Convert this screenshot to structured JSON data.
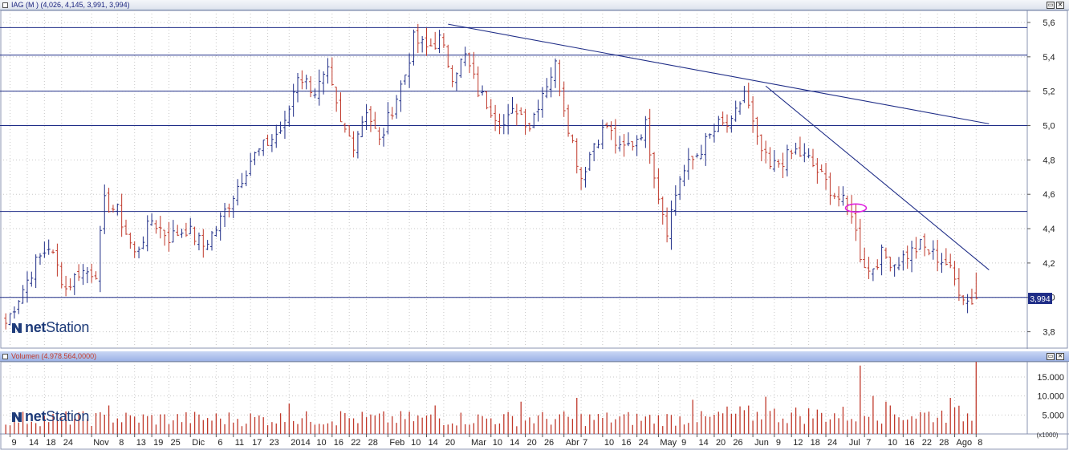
{
  "price_panel": {
    "title": "IAG (M ) (4,026, 4,145, 3,991, 3,994)",
    "last_price_label": "3,994",
    "y_ticks": [
      "5,6",
      "5,4",
      "5,2",
      "5,0",
      "4,8",
      "4,6",
      "4,4",
      "4,2",
      "4,0",
      "3,8"
    ]
  },
  "volume_panel": {
    "title": "Volumen (4.978.564,0000)",
    "last_volume_label": "4.978.564",
    "unit_label": "(x1000)",
    "y_ticks": [
      "15.000",
      "10.000",
      "5.000"
    ]
  },
  "logo": {
    "brand_prefix": "net",
    "brand_suffix": "Station"
  },
  "window_buttons": {
    "restore": "▭",
    "close": "✕"
  },
  "x_axis": {
    "labels": [
      {
        "i": 1,
        "t": "9"
      },
      {
        "i": 5,
        "t": "14"
      },
      {
        "i": 9,
        "t": "18"
      },
      {
        "i": 13,
        "t": "24"
      },
      {
        "i": 20,
        "t": "Nov"
      },
      {
        "i": 26,
        "t": "8"
      },
      {
        "i": 30,
        "t": "13"
      },
      {
        "i": 34,
        "t": "19"
      },
      {
        "i": 38,
        "t": "25"
      },
      {
        "i": 43,
        "t": "Dic"
      },
      {
        "i": 49,
        "t": "6"
      },
      {
        "i": 53,
        "t": "11"
      },
      {
        "i": 57,
        "t": "17"
      },
      {
        "i": 61,
        "t": "23"
      },
      {
        "i": 66,
        "t": "2014"
      },
      {
        "i": 72,
        "t": "10"
      },
      {
        "i": 76,
        "t": "16"
      },
      {
        "i": 80,
        "t": "22"
      },
      {
        "i": 84,
        "t": "28"
      },
      {
        "i": 89,
        "t": "Feb"
      },
      {
        "i": 94,
        "t": "10"
      },
      {
        "i": 98,
        "t": "14"
      },
      {
        "i": 102,
        "t": "20"
      },
      {
        "i": 108,
        "t": "Mar"
      },
      {
        "i": 113,
        "t": "10"
      },
      {
        "i": 117,
        "t": "14"
      },
      {
        "i": 121,
        "t": "20"
      },
      {
        "i": 125,
        "t": "26"
      },
      {
        "i": 130,
        "t": "Abr"
      },
      {
        "i": 134,
        "t": "7"
      },
      {
        "i": 139,
        "t": "10"
      },
      {
        "i": 143,
        "t": "16"
      },
      {
        "i": 147,
        "t": "24"
      },
      {
        "i": 152,
        "t": "May"
      },
      {
        "i": 157,
        "t": "9"
      },
      {
        "i": 161,
        "t": "14"
      },
      {
        "i": 165,
        "t": "20"
      },
      {
        "i": 169,
        "t": "26"
      },
      {
        "i": 174,
        "t": "Jun"
      },
      {
        "i": 179,
        "t": "9"
      },
      {
        "i": 183,
        "t": "12"
      },
      {
        "i": 187,
        "t": "18"
      },
      {
        "i": 191,
        "t": "24"
      },
      {
        "i": 196,
        "t": "Jul"
      },
      {
        "i": 200,
        "t": "7"
      },
      {
        "i": 205,
        "t": "10"
      },
      {
        "i": 209,
        "t": "16"
      },
      {
        "i": 213,
        "t": "22"
      },
      {
        "i": 217,
        "t": "28"
      },
      {
        "i": 221,
        "t": "Ago"
      },
      {
        "i": 226,
        "t": "8"
      }
    ]
  },
  "colors": {
    "up": "#1f2d87",
    "down": "#c0392b",
    "grid_line": "#1f2d87",
    "trend_line": "#1f2d87",
    "highlight_ellipse": "#e020e0",
    "price_label_bg": "#1f2d87",
    "volume_label_bg": "#c0392b",
    "volume_bar": "#c0392b"
  },
  "chart_data": [
    {
      "type": "ohlc",
      "title": "IAG (M ) (4,026, 4,145, 3,991, 3,994)",
      "ylim": [
        3.7,
        5.67
      ],
      "y_ticks": [
        5.6,
        5.4,
        5.2,
        5.0,
        4.8,
        4.6,
        4.4,
        4.2,
        4.0,
        3.8
      ],
      "horizontal_lines": [
        5.57,
        5.41,
        5.2,
        5.0,
        4.5,
        4.0
      ],
      "trend_lines": [
        {
          "from": {
            "i": 103,
            "price": 5.59
          },
          "to": {
            "i": 229,
            "price": 5.01
          }
        },
        {
          "from": {
            "i": 177,
            "price": 5.23
          },
          "to": {
            "i": 229,
            "price": 4.16
          }
        }
      ],
      "highlight": {
        "i": 198,
        "price": 4.52
      },
      "last": {
        "open": 4.026,
        "high": 4.145,
        "low": 3.991,
        "close": 3.994
      },
      "keypoints": [
        [
          0,
          3.85
        ],
        [
          3,
          4.0
        ],
        [
          7,
          4.2
        ],
        [
          10,
          4.3
        ],
        [
          14,
          4.05
        ],
        [
          17,
          4.15
        ],
        [
          21,
          4.15
        ],
        [
          23,
          4.55
        ],
        [
          26,
          4.5
        ],
        [
          30,
          4.25
        ],
        [
          34,
          4.45
        ],
        [
          38,
          4.35
        ],
        [
          42,
          4.4
        ],
        [
          46,
          4.3
        ],
        [
          49,
          4.4
        ],
        [
          53,
          4.6
        ],
        [
          57,
          4.8
        ],
        [
          61,
          4.9
        ],
        [
          65,
          5.0
        ],
        [
          68,
          5.3
        ],
        [
          72,
          5.2
        ],
        [
          75,
          5.3
        ],
        [
          78,
          5.0
        ],
        [
          81,
          4.9
        ],
        [
          84,
          5.1
        ],
        [
          87,
          4.9
        ],
        [
          90,
          5.1
        ],
        [
          93,
          5.3
        ],
        [
          95,
          5.5
        ],
        [
          98,
          5.45
        ],
        [
          101,
          5.5
        ],
        [
          104,
          5.3
        ],
        [
          107,
          5.4
        ],
        [
          110,
          5.2
        ],
        [
          113,
          5.1
        ],
        [
          116,
          5.0
        ],
        [
          119,
          5.1
        ],
        [
          122,
          5.0
        ],
        [
          125,
          5.2
        ],
        [
          128,
          5.35
        ],
        [
          131,
          5.0
        ],
        [
          134,
          4.7
        ],
        [
          137,
          4.9
        ],
        [
          140,
          5.0
        ],
        [
          143,
          4.85
        ],
        [
          146,
          4.9
        ],
        [
          149,
          5.0
        ],
        [
          152,
          4.6
        ],
        [
          154,
          4.4
        ],
        [
          157,
          4.7
        ],
        [
          160,
          4.8
        ],
        [
          163,
          4.9
        ],
        [
          166,
          5.0
        ],
        [
          169,
          5.0
        ],
        [
          172,
          5.2
        ],
        [
          175,
          4.9
        ],
        [
          178,
          4.75
        ],
        [
          181,
          4.8
        ],
        [
          184,
          4.85
        ],
        [
          187,
          4.8
        ],
        [
          190,
          4.7
        ],
        [
          193,
          4.6
        ],
        [
          195,
          4.55
        ],
        [
          197,
          4.5
        ],
        [
          199,
          4.25
        ],
        [
          201,
          4.15
        ],
        [
          204,
          4.25
        ],
        [
          207,
          4.2
        ],
        [
          210,
          4.25
        ],
        [
          213,
          4.3
        ],
        [
          216,
          4.25
        ],
        [
          219,
          4.2
        ],
        [
          222,
          4.05
        ],
        [
          224,
          3.98
        ],
        [
          226,
          3.99
        ]
      ]
    },
    {
      "type": "bar",
      "title": "Volumen (4.978.564,0000)",
      "unit": "(x1000)",
      "ylim": [
        0,
        19000
      ],
      "y_ticks": [
        15000,
        10000,
        5000
      ],
      "last_value": 4978.564,
      "spikes": [
        [
          24,
          7500
        ],
        [
          66,
          8000
        ],
        [
          78,
          6000
        ],
        [
          100,
          7500
        ],
        [
          120,
          8500
        ],
        [
          133,
          9500
        ],
        [
          160,
          9000
        ],
        [
          177,
          9800
        ],
        [
          199,
          18000
        ],
        [
          202,
          10000
        ],
        [
          205,
          8500
        ],
        [
          220,
          9500
        ]
      ],
      "base_volume": 4500
    }
  ]
}
